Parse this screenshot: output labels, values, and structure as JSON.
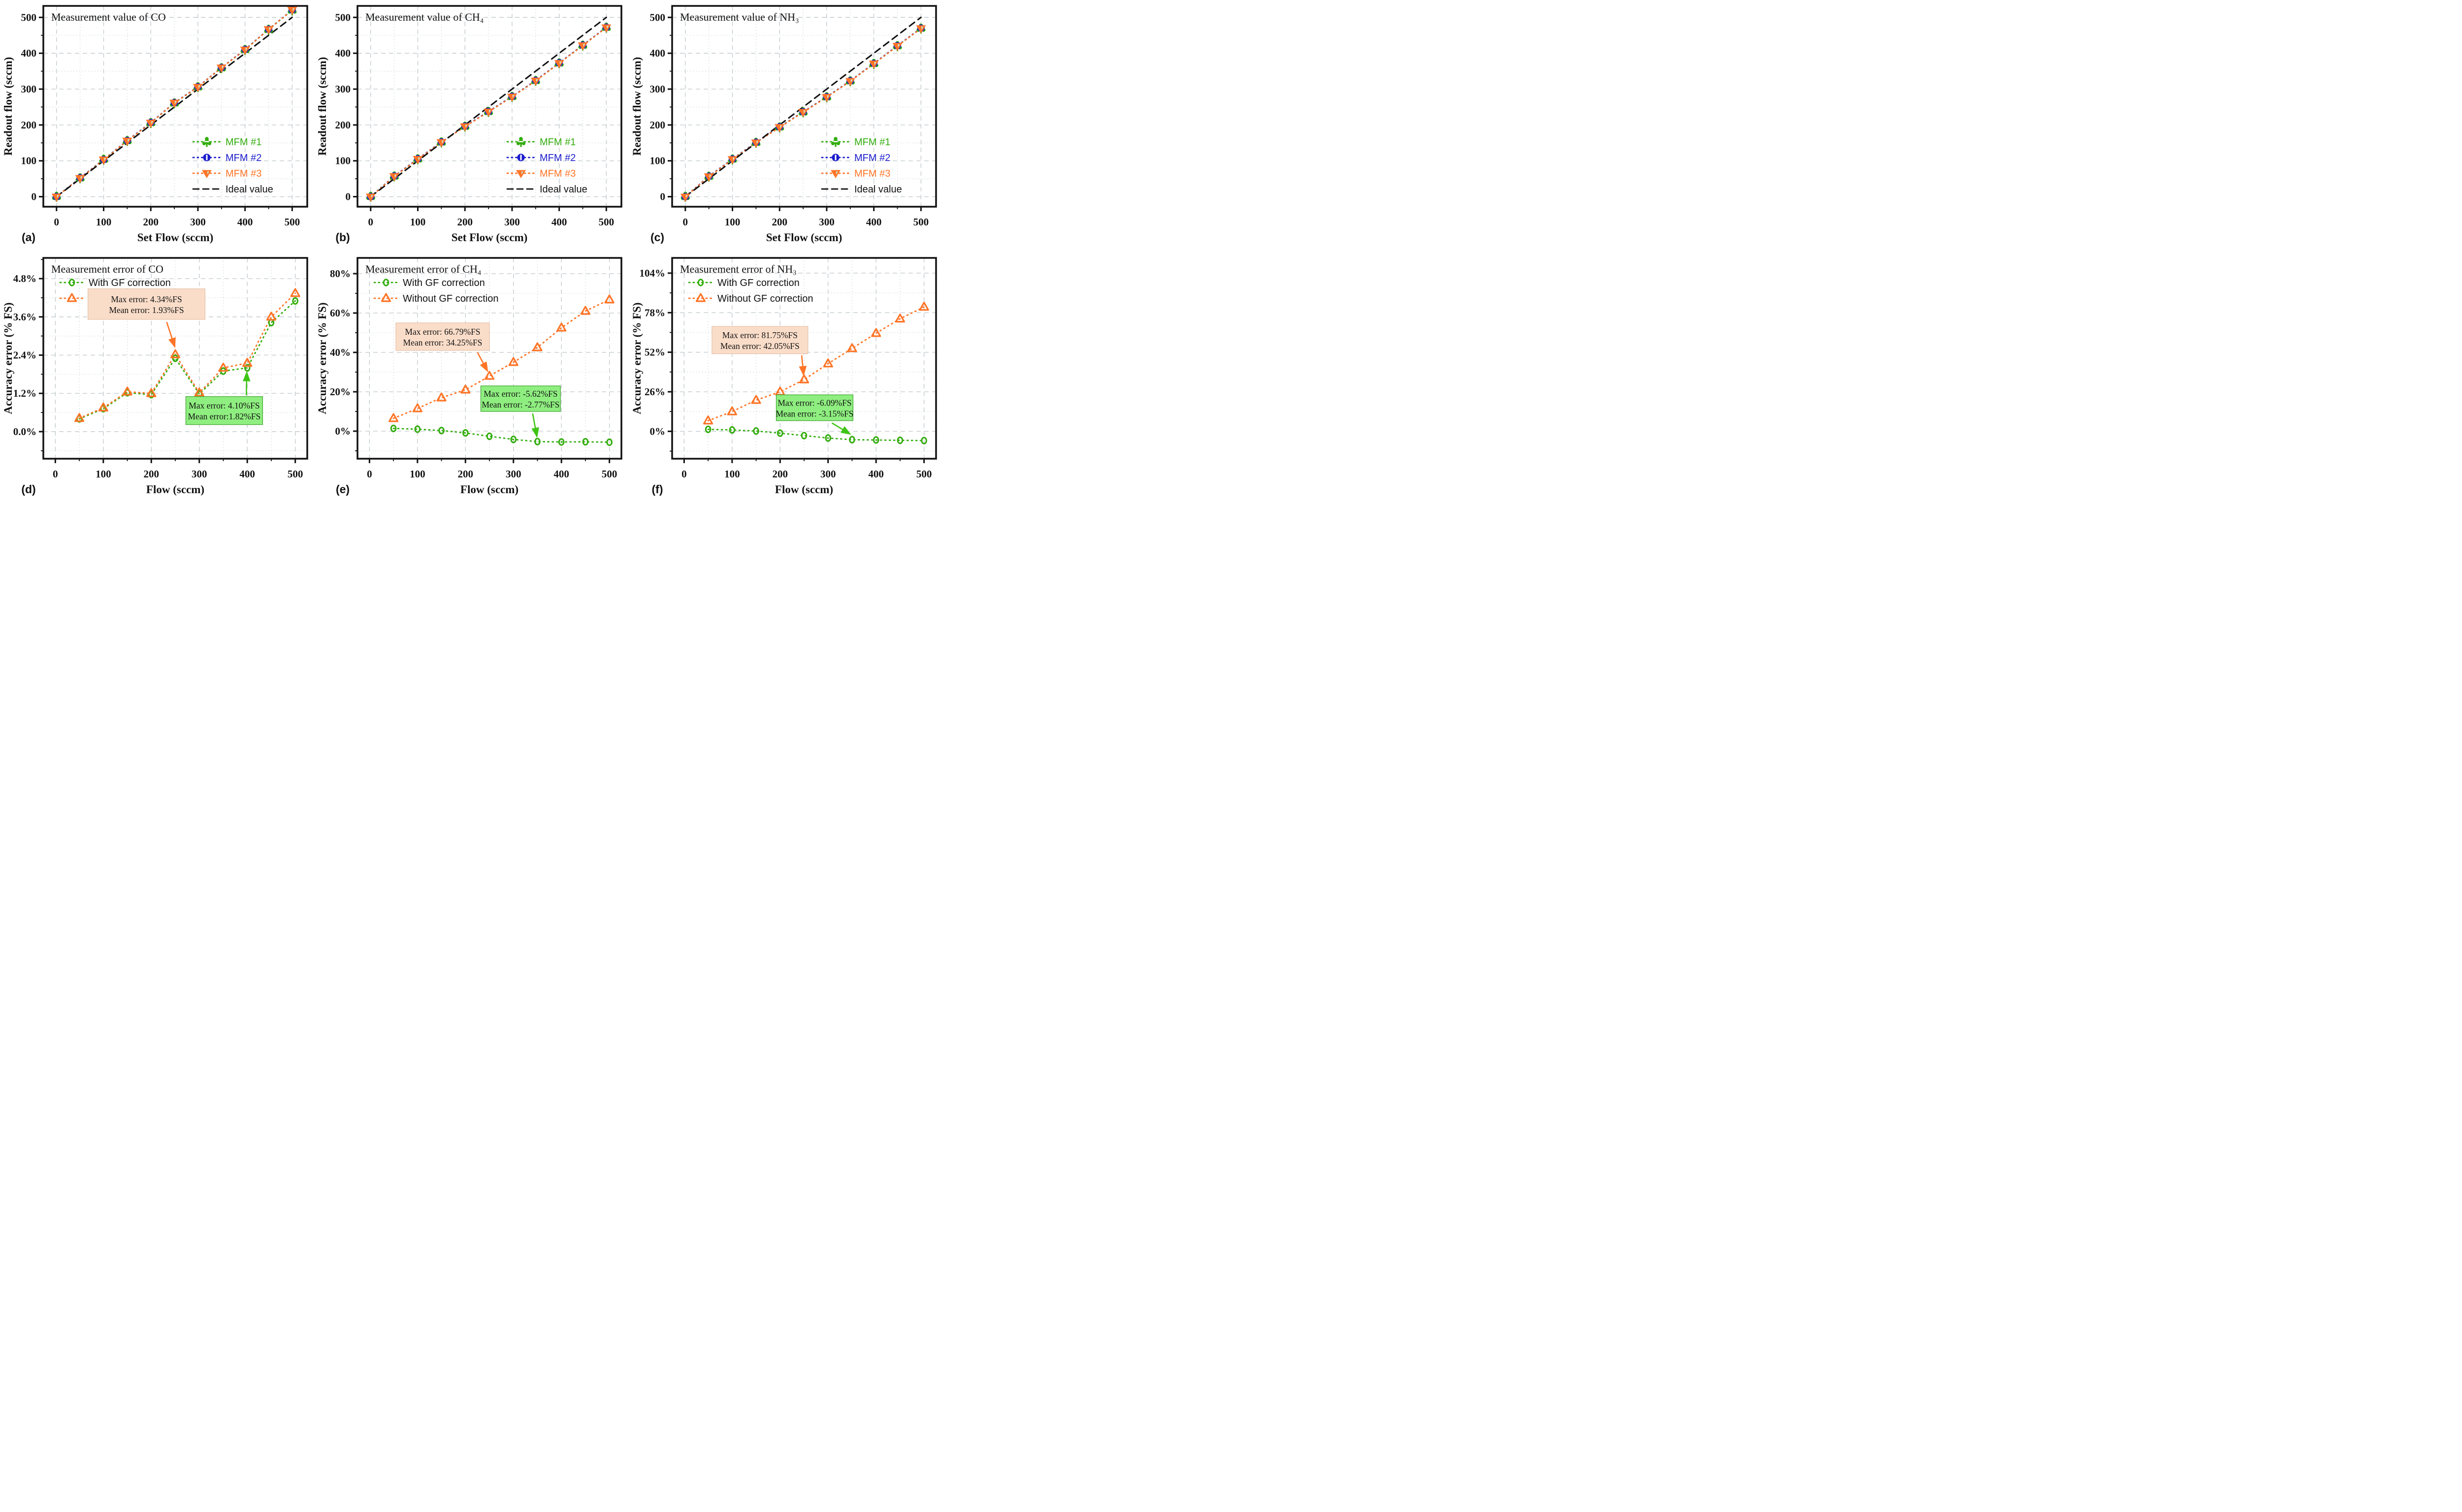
{
  "figure": {
    "background": "#ffffff",
    "colors": {
      "green": "#33AD0E",
      "blue": "#1C1CCD",
      "orange": "#FF7426",
      "black": "#111111",
      "grid_major": "#BFC7CB",
      "grid_minor": "#C9CFD3",
      "peach_fill": "#FADDC9",
      "peach_border": "#E6BFA4",
      "green_fill": "#8FEE80",
      "green_border": "#3DA32E",
      "arrow_green": "#3EC414",
      "notch": "#BCEFDE"
    }
  },
  "chart_data": [
    {
      "id": "a",
      "kind": "top",
      "type": "scatter",
      "panel_letter": "(a)",
      "title": "Measurement value of CO",
      "xlabel": "Set Flow (sccm)",
      "ylabel": "Readout flow (sccm)",
      "xlim": [
        -28,
        532
      ],
      "ylim": [
        -28,
        532
      ],
      "xticks": [
        0,
        100,
        200,
        300,
        400,
        500
      ],
      "xtick_labels": [
        "0",
        "100",
        "200",
        "300",
        "400",
        "500"
      ],
      "xminor": [
        50,
        150,
        250,
        350,
        450
      ],
      "yticks": [
        0,
        100,
        200,
        300,
        400,
        500
      ],
      "ytick_labels": [
        "0",
        "100",
        "200",
        "300",
        "400",
        "500"
      ],
      "yminor": [
        50,
        150,
        250,
        350,
        450
      ],
      "grid": {
        "major": "dashed",
        "minor": "dotted"
      },
      "legend_position": "lower-right",
      "series": [
        {
          "name": "MFM #1",
          "color": "green",
          "marker": "club",
          "line": "dotted",
          "x": [
            0,
            50,
            100,
            150,
            200,
            250,
            300,
            350,
            400,
            450,
            500
          ],
          "y": [
            0.5,
            52,
            104,
            156,
            206,
            261,
            306,
            359,
            410,
            466,
            520
          ]
        },
        {
          "name": "MFM #2",
          "color": "blue",
          "marker": "circle-slash",
          "line": "dotted",
          "x": [
            0,
            50,
            100,
            150,
            200,
            250,
            300,
            350,
            400,
            450,
            500
          ],
          "y": [
            0,
            52.5,
            103.5,
            156.5,
            206.5,
            262,
            306.5,
            360,
            410.5,
            467,
            521
          ]
        },
        {
          "name": "MFM #3",
          "color": "orange",
          "marker": "tri-down",
          "line": "dotted",
          "x": [
            0,
            50,
            100,
            150,
            200,
            250,
            300,
            350,
            400,
            450,
            500
          ],
          "y": [
            -0.5,
            51.5,
            103,
            155.5,
            205.5,
            261.5,
            305.5,
            359.5,
            409.5,
            466.5,
            520.5
          ]
        },
        {
          "name": "Ideal value",
          "color": "black",
          "marker": null,
          "line": "dashed",
          "x": [
            0,
            500
          ],
          "y": [
            0,
            500
          ]
        }
      ],
      "annotations": []
    },
    {
      "id": "b",
      "kind": "top",
      "type": "scatter",
      "panel_letter": "(b)",
      "title": "Measurement value of CH₄",
      "xlabel": "Set Flow (sccm)",
      "ylabel": "Readout flow (sccm)",
      "xlim": [
        -28,
        532
      ],
      "ylim": [
        -28,
        532
      ],
      "xticks": [
        0,
        100,
        200,
        300,
        400,
        500
      ],
      "xtick_labels": [
        "0",
        "100",
        "200",
        "300",
        "400",
        "500"
      ],
      "xminor": [
        50,
        150,
        250,
        350,
        450
      ],
      "yticks": [
        0,
        100,
        200,
        300,
        400,
        500
      ],
      "ytick_labels": [
        "0",
        "100",
        "200",
        "300",
        "400",
        "500"
      ],
      "yminor": [
        50,
        150,
        250,
        350,
        450
      ],
      "grid": {
        "major": "dashed",
        "minor": "dotted"
      },
      "legend_position": "lower-right",
      "series": [
        {
          "name": "MFM #1",
          "color": "green",
          "marker": "club",
          "line": "dotted",
          "x": [
            0,
            50,
            100,
            150,
            200,
            250,
            300,
            350,
            400,
            450,
            500
          ],
          "y": [
            0.5,
            57,
            105,
            152,
            196,
            237,
            279,
            323.5,
            372.5,
            422,
            472
          ]
        },
        {
          "name": "MFM #2",
          "color": "blue",
          "marker": "circle-slash",
          "line": "dotted",
          "x": [
            0,
            50,
            100,
            150,
            200,
            250,
            300,
            350,
            400,
            450,
            500
          ],
          "y": [
            0,
            57.5,
            105.5,
            152.5,
            196.5,
            237.5,
            279.5,
            324,
            373,
            422.5,
            472.5
          ]
        },
        {
          "name": "MFM #3",
          "color": "orange",
          "marker": "tri-down",
          "line": "dotted",
          "x": [
            0,
            50,
            100,
            150,
            200,
            250,
            300,
            350,
            400,
            450,
            500
          ],
          "y": [
            -0.5,
            56.5,
            104.5,
            151.5,
            195.5,
            236.5,
            278.5,
            323,
            372,
            421.5,
            471.5
          ]
        },
        {
          "name": "Ideal value",
          "color": "black",
          "marker": null,
          "line": "dashed",
          "x": [
            0,
            500
          ],
          "y": [
            0,
            500
          ]
        }
      ],
      "annotations": []
    },
    {
      "id": "c",
      "kind": "top",
      "type": "scatter",
      "panel_letter": "(c)",
      "title": "Measurement value of NH₃",
      "xlabel": "Set Flow (sccm)",
      "ylabel": "Readout flow (sccm)",
      "xlim": [
        -28,
        532
      ],
      "ylim": [
        -28,
        532
      ],
      "xticks": [
        0,
        100,
        200,
        300,
        400,
        500
      ],
      "xtick_labels": [
        "0",
        "100",
        "200",
        "300",
        "400",
        "500"
      ],
      "xminor": [
        50,
        150,
        250,
        350,
        450
      ],
      "yticks": [
        0,
        100,
        200,
        300,
        400,
        500
      ],
      "ytick_labels": [
        "0",
        "100",
        "200",
        "300",
        "400",
        "500"
      ],
      "yminor": [
        50,
        150,
        250,
        350,
        450
      ],
      "grid": {
        "major": "dashed",
        "minor": "dotted"
      },
      "legend_position": "lower-right",
      "series": [
        {
          "name": "MFM #1",
          "color": "green",
          "marker": "club",
          "line": "dotted",
          "x": [
            0,
            50,
            100,
            150,
            200,
            250,
            300,
            350,
            400,
            450,
            500
          ],
          "y": [
            0.5,
            56.5,
            104.5,
            151,
            194,
            236,
            278,
            322.5,
            371,
            420.5,
            469.5
          ]
        },
        {
          "name": "MFM #2",
          "color": "blue",
          "marker": "circle-slash",
          "line": "dotted",
          "x": [
            0,
            50,
            100,
            150,
            200,
            250,
            300,
            350,
            400,
            450,
            500
          ],
          "y": [
            0,
            57,
            105,
            151.5,
            194.5,
            236.5,
            278.5,
            323,
            371.5,
            421,
            470
          ]
        },
        {
          "name": "MFM #3",
          "color": "orange",
          "marker": "tri-down",
          "line": "dotted",
          "x": [
            0,
            50,
            100,
            150,
            200,
            250,
            300,
            350,
            400,
            450,
            500
          ],
          "y": [
            -0.5,
            56,
            104,
            150.5,
            193.5,
            235.5,
            277.5,
            322,
            370.5,
            420,
            469
          ]
        },
        {
          "name": "Ideal value",
          "color": "black",
          "marker": null,
          "line": "dashed",
          "x": [
            0,
            500
          ],
          "y": [
            0,
            500
          ]
        }
      ],
      "annotations": []
    },
    {
      "id": "d",
      "kind": "bottom",
      "type": "scatter",
      "panel_letter": "(d)",
      "title": "Measurement error of CO",
      "xlabel": "Flow (sccm)",
      "ylabel": "Accuracy error (% FS)",
      "xlim": [
        -25,
        525
      ],
      "ylim": [
        -0.85,
        5.45
      ],
      "xticks": [
        0,
        100,
        200,
        300,
        400,
        500
      ],
      "xtick_labels": [
        "0",
        "100",
        "200",
        "300",
        "400",
        "500"
      ],
      "xminor": [
        50,
        150,
        250,
        350,
        450
      ],
      "yticks": [
        0,
        1.2,
        2.4,
        3.6,
        4.8
      ],
      "ytick_labels": [
        "0.0%",
        "1.2%",
        "2.4%",
        "3.6%",
        "4.8%"
      ],
      "yminor": [
        -0.6,
        0.6,
        1.8,
        3.0,
        4.2,
        5.4
      ],
      "grid": {
        "major": "dashed",
        "minor": "dotted"
      },
      "legend_position": "upper-left",
      "series": [
        {
          "name": "With GF correction",
          "color": "green",
          "marker": "circle-open",
          "line": "dotted",
          "x": [
            50,
            100,
            150,
            200,
            250,
            300,
            350,
            400,
            450,
            500
          ],
          "y": [
            0.4,
            0.72,
            1.22,
            1.16,
            2.3,
            1.18,
            1.9,
            2.0,
            3.42,
            4.1
          ]
        },
        {
          "name": "Without GF correction",
          "color": "orange",
          "marker": "tri-open",
          "line": "dotted",
          "x": [
            50,
            100,
            150,
            200,
            250,
            300,
            350,
            400,
            450,
            500
          ],
          "y": [
            0.42,
            0.75,
            1.25,
            1.2,
            2.42,
            1.22,
            2.0,
            2.15,
            3.6,
            4.34
          ]
        }
      ],
      "annotations": [
        {
          "style": "peach",
          "lines": [
            "Max error: 4.34%FS",
            "Mean error: 1.93%FS"
          ],
          "box": {
            "x1": 68,
            "y1": 3.52,
            "x2": 312,
            "y2": 4.48
          },
          "arrow": {
            "x1": 232,
            "y1": 3.44,
            "x2": 249,
            "y2": 2.66
          }
        },
        {
          "style": "green",
          "lines": [
            "Max error: 4.10%FS",
            "Mean error:1.82%FS"
          ],
          "box": {
            "x1": 272,
            "y1": 0.22,
            "x2": 432,
            "y2": 1.1
          },
          "arrow": {
            "x1": 398,
            "y1": 1.14,
            "x2": 399,
            "y2": 1.86
          }
        }
      ]
    },
    {
      "id": "e",
      "kind": "bottom",
      "type": "scatter",
      "panel_letter": "(e)",
      "title": "Measurement error of CH₄",
      "xlabel": "Flow (sccm)",
      "ylabel": "Accuracy error (% FS)",
      "xlim": [
        -25,
        525
      ],
      "ylim": [
        -14,
        88
      ],
      "xticks": [
        0,
        100,
        200,
        300,
        400,
        500
      ],
      "xtick_labels": [
        "0",
        "100",
        "200",
        "300",
        "400",
        "500"
      ],
      "xminor": [
        50,
        150,
        250,
        350,
        450
      ],
      "yticks": [
        0,
        20,
        40,
        60,
        80
      ],
      "ytick_labels": [
        "0%",
        "20%",
        "40%",
        "60%",
        "80%"
      ],
      "yminor": [
        -10,
        10,
        30,
        50,
        70
      ],
      "grid": {
        "major": "dashed",
        "minor": "dotted"
      },
      "legend_position": "upper-left",
      "series": [
        {
          "name": "With GF correction",
          "color": "green",
          "marker": "circle-open",
          "line": "dotted",
          "x": [
            50,
            100,
            150,
            200,
            250,
            300,
            350,
            400,
            450,
            500
          ],
          "y": [
            1.4,
            1.0,
            0.3,
            -0.9,
            -2.6,
            -4.2,
            -5.3,
            -5.5,
            -5.4,
            -5.62
          ]
        },
        {
          "name": "Without GF correction",
          "color": "orange",
          "marker": "tri-open",
          "line": "dotted",
          "x": [
            50,
            100,
            150,
            200,
            250,
            300,
            350,
            400,
            450,
            500
          ],
          "y": [
            6.5,
            11.5,
            17,
            21,
            28,
            35,
            42.5,
            52.5,
            61,
            66.79
          ]
        }
      ],
      "annotations": [
        {
          "style": "peach",
          "lines": [
            "Max error: 66.79%FS",
            "Mean error: 34.25%FS"
          ],
          "box": {
            "x1": 55,
            "y1": 41,
            "x2": 250,
            "y2": 55
          },
          "arrow": {
            "x1": 225,
            "y1": 40,
            "x2": 246,
            "y2": 30.5
          }
        },
        {
          "style": "green",
          "lines": [
            "Max error: -5.62%FS",
            "Mean error: -2.77%FS"
          ],
          "box": {
            "x1": 232,
            "y1": 10,
            "x2": 398,
            "y2": 23
          },
          "arrow": {
            "x1": 340,
            "y1": 9,
            "x2": 349,
            "y2": -2.8
          }
        }
      ]
    },
    {
      "id": "f",
      "kind": "bottom",
      "type": "scatter",
      "panel_letter": "(f)",
      "title": "Measurement error of NH₃",
      "xlabel": "Flow (sccm)",
      "ylabel": "Accuracy error (% FS)",
      "xlim": [
        -25,
        525
      ],
      "ylim": [
        -18,
        114
      ],
      "xticks": [
        0,
        100,
        200,
        300,
        400,
        500
      ],
      "xtick_labels": [
        "0",
        "100",
        "200",
        "300",
        "400",
        "500"
      ],
      "xminor": [
        50,
        150,
        250,
        350,
        450
      ],
      "yticks": [
        0,
        26,
        52,
        78,
        104
      ],
      "ytick_labels": [
        "0%",
        "26%",
        "52%",
        "78%",
        "104%"
      ],
      "yminor": [
        -13,
        13,
        39,
        65,
        91
      ],
      "grid": {
        "major": "dashed",
        "minor": "dotted"
      },
      "legend_position": "upper-left",
      "series": [
        {
          "name": "With GF correction",
          "color": "green",
          "marker": "circle-open",
          "line": "dotted",
          "x": [
            50,
            100,
            150,
            200,
            250,
            300,
            350,
            400,
            450,
            500
          ],
          "y": [
            1.3,
            0.9,
            0.2,
            -1.2,
            -2.8,
            -4.4,
            -5.5,
            -5.7,
            -5.9,
            -6.09
          ]
        },
        {
          "name": "Without GF correction",
          "color": "orange",
          "marker": "tri-open",
          "line": "dotted",
          "x": [
            50,
            100,
            150,
            200,
            250,
            300,
            350,
            400,
            450,
            500
          ],
          "y": [
            7,
            13,
            20.5,
            26,
            34,
            44.5,
            54.5,
            64.5,
            74,
            81.75
          ]
        }
      ],
      "annotations": [
        {
          "style": "peach",
          "lines": [
            "Max error: 81.75%FS",
            "Mean error: 42.05%FS"
          ],
          "box": {
            "x1": 58,
            "y1": 51,
            "x2": 258,
            "y2": 69
          },
          "arrow": {
            "x1": 245,
            "y1": 50,
            "x2": 249,
            "y2": 37
          }
        },
        {
          "style": "green",
          "lines": [
            "Max error: -6.09%FS",
            "Mean error: -3.15%FS"
          ],
          "box": {
            "x1": 192,
            "y1": 7,
            "x2": 352,
            "y2": 24
          },
          "arrow": {
            "x1": 308,
            "y1": 5.5,
            "x2": 346,
            "y2": -1.8
          }
        }
      ]
    }
  ]
}
